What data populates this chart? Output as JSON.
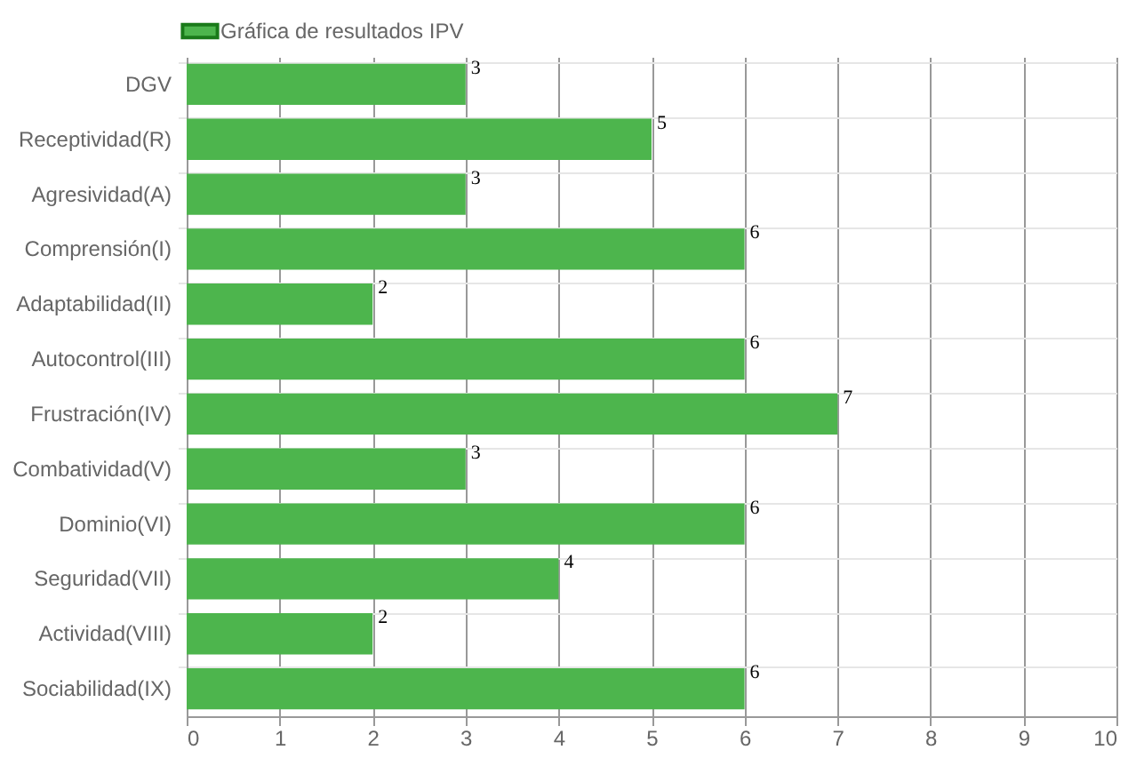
{
  "chart_data": {
    "type": "bar",
    "orientation": "horizontal",
    "categories": [
      "DGV",
      "Receptividad(R)",
      "Agresividad(A)",
      "Comprensión(I)",
      "Adaptabilidad(II)",
      "Autocontrol(III)",
      "Frustración(IV)",
      "Combatividad(V)",
      "Dominio(VI)",
      "Seguridad(VII)",
      "Actividad(VIII)",
      "Sociabilidad(IX)"
    ],
    "series": [
      {
        "name": "Gráfica de resultados IPV",
        "color": "#4db54d",
        "values": [
          3,
          5,
          3,
          6,
          2,
          6,
          7,
          3,
          6,
          4,
          2,
          6
        ]
      }
    ],
    "xlim": [
      0,
      10
    ],
    "xticks": [
      0,
      1,
      2,
      3,
      4,
      5,
      6,
      7,
      8,
      9,
      10
    ],
    "grid": true,
    "legend": "top",
    "data_labels": true
  }
}
